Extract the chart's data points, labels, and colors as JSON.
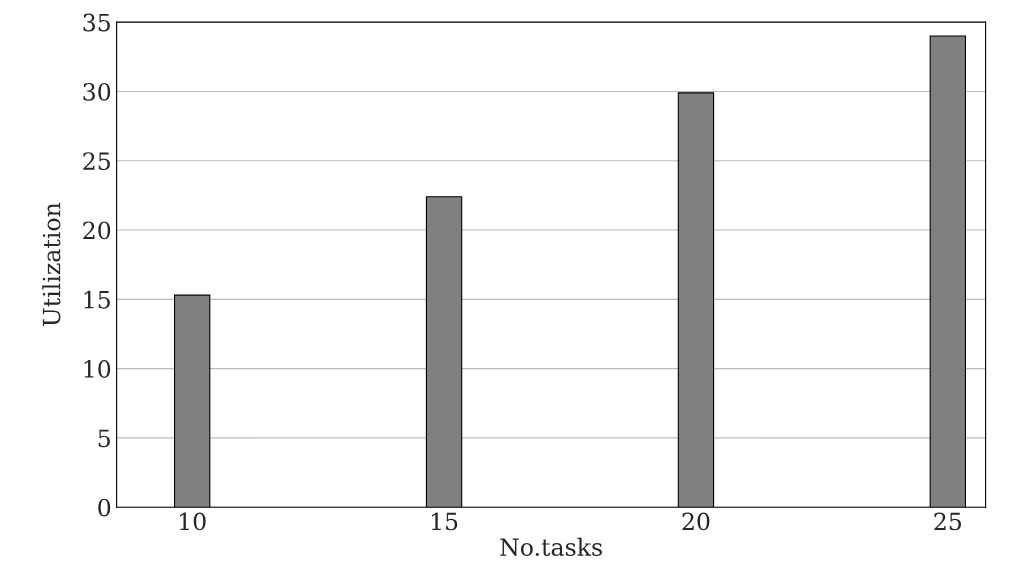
{
  "chart_data": {
    "type": "bar",
    "xlabel": "No.tasks",
    "ylabel": "Utilization",
    "categories": [
      "10",
      "15",
      "20",
      "25"
    ],
    "series": [
      {
        "color": "#808080",
        "values": [
          15.3,
          22.4,
          29.9,
          34
        ]
      }
    ],
    "ylim": [
      0,
      35
    ],
    "yticks": [
      0,
      5,
      10,
      15,
      20,
      25,
      30,
      35
    ],
    "grid": "y"
  }
}
